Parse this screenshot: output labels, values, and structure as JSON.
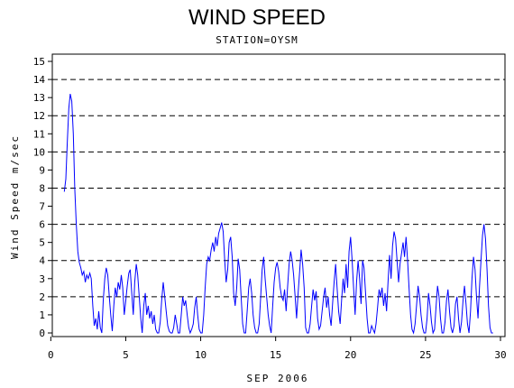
{
  "chart_data": {
    "type": "line",
    "title": "WIND SPEED",
    "subtitle": "STATION=OYSM",
    "xlabel": "SEP 2006",
    "ylabel": "Wind Speed m/sec",
    "xlim": [
      0.1,
      30.3
    ],
    "ylim": [
      -0.2,
      15.4
    ],
    "x_ticks": [
      0,
      5,
      10,
      15,
      20,
      25,
      30
    ],
    "y_ticks": [
      0,
      1,
      2,
      3,
      4,
      5,
      6,
      7,
      8,
      9,
      10,
      11,
      12,
      13,
      14,
      15
    ],
    "gridlines_y": [
      2,
      4,
      6,
      8,
      10,
      12,
      14
    ],
    "grid_style": "dashed horizontal",
    "line_color": "#0000ff",
    "series": [
      {
        "points": [
          [
            0.9,
            7.8
          ],
          [
            1.0,
            8.5
          ],
          [
            1.1,
            10.5
          ],
          [
            1.2,
            12.4
          ],
          [
            1.3,
            13.2
          ],
          [
            1.4,
            12.8
          ],
          [
            1.5,
            11.0
          ],
          [
            1.6,
            8.0
          ],
          [
            1.7,
            6.0
          ],
          [
            1.8,
            4.5
          ],
          [
            1.9,
            3.9
          ],
          [
            2.0,
            3.6
          ],
          [
            2.1,
            3.2
          ],
          [
            2.2,
            3.4
          ],
          [
            2.3,
            2.8
          ],
          [
            2.4,
            3.2
          ],
          [
            2.5,
            3.0
          ],
          [
            2.6,
            3.3
          ],
          [
            2.7,
            3.0
          ],
          [
            2.8,
            1.5
          ],
          [
            2.9,
            0.4
          ],
          [
            3.0,
            0.8
          ],
          [
            3.1,
            0.2
          ],
          [
            3.2,
            1.2
          ],
          [
            3.3,
            0.3
          ],
          [
            3.4,
            0.0
          ],
          [
            3.5,
            1.8
          ],
          [
            3.6,
            3.0
          ],
          [
            3.7,
            3.6
          ],
          [
            3.8,
            3.2
          ],
          [
            3.9,
            2.0
          ],
          [
            4.0,
            1.0
          ],
          [
            4.1,
            0.1
          ],
          [
            4.2,
            1.5
          ],
          [
            4.3,
            2.5
          ],
          [
            4.4,
            2.0
          ],
          [
            4.5,
            2.8
          ],
          [
            4.6,
            2.4
          ],
          [
            4.7,
            3.2
          ],
          [
            4.8,
            2.5
          ],
          [
            4.9,
            1.0
          ],
          [
            5.0,
            1.8
          ],
          [
            5.1,
            2.6
          ],
          [
            5.2,
            3.3
          ],
          [
            5.3,
            3.5
          ],
          [
            5.4,
            2.2
          ],
          [
            5.5,
            1.0
          ],
          [
            5.6,
            2.8
          ],
          [
            5.7,
            3.8
          ],
          [
            5.8,
            3.2
          ],
          [
            5.9,
            2.0
          ],
          [
            6.0,
            0.8
          ],
          [
            6.1,
            0.0
          ],
          [
            6.2,
            1.5
          ],
          [
            6.3,
            2.2
          ],
          [
            6.4,
            1.0
          ],
          [
            6.5,
            1.5
          ],
          [
            6.6,
            0.8
          ],
          [
            6.7,
            1.2
          ],
          [
            6.8,
            0.5
          ],
          [
            6.9,
            1.0
          ],
          [
            7.0,
            0.2
          ],
          [
            7.1,
            0.0
          ],
          [
            7.2,
            0.0
          ],
          [
            7.3,
            0.6
          ],
          [
            7.4,
            1.8
          ],
          [
            7.5,
            2.8
          ],
          [
            7.6,
            2.0
          ],
          [
            7.7,
            1.2
          ],
          [
            7.8,
            0.4
          ],
          [
            7.9,
            0.1
          ],
          [
            8.0,
            0.0
          ],
          [
            8.1,
            0.0
          ],
          [
            8.2,
            0.3
          ],
          [
            8.3,
            1.0
          ],
          [
            8.4,
            0.5
          ],
          [
            8.5,
            0.0
          ],
          [
            8.6,
            0.0
          ],
          [
            8.7,
            1.0
          ],
          [
            8.8,
            2.0
          ],
          [
            8.9,
            1.5
          ],
          [
            9.0,
            1.8
          ],
          [
            9.1,
            1.0
          ],
          [
            9.2,
            0.3
          ],
          [
            9.3,
            0.0
          ],
          [
            9.4,
            0.2
          ],
          [
            9.5,
            0.5
          ],
          [
            9.6,
            1.4
          ],
          [
            9.7,
            2.0
          ],
          [
            9.8,
            1.0
          ],
          [
            9.9,
            0.2
          ],
          [
            10.0,
            0.0
          ],
          [
            10.1,
            0.0
          ],
          [
            10.2,
            1.0
          ],
          [
            10.3,
            2.5
          ],
          [
            10.4,
            3.8
          ],
          [
            10.5,
            4.2
          ],
          [
            10.6,
            4.0
          ],
          [
            10.7,
            4.6
          ],
          [
            10.8,
            5.0
          ],
          [
            10.9,
            4.5
          ],
          [
            11.0,
            5.3
          ],
          [
            11.1,
            4.8
          ],
          [
            11.2,
            5.5
          ],
          [
            11.3,
            5.8
          ],
          [
            11.4,
            6.1
          ],
          [
            11.5,
            5.6
          ],
          [
            11.6,
            4.0
          ],
          [
            11.7,
            2.8
          ],
          [
            11.8,
            3.5
          ],
          [
            11.9,
            5.0
          ],
          [
            12.0,
            5.3
          ],
          [
            12.1,
            4.2
          ],
          [
            12.2,
            2.2
          ],
          [
            12.3,
            1.5
          ],
          [
            12.4,
            2.5
          ],
          [
            12.5,
            4.1
          ],
          [
            12.6,
            3.5
          ],
          [
            12.7,
            2.0
          ],
          [
            12.8,
            0.5
          ],
          [
            12.9,
            0.0
          ],
          [
            13.0,
            0.0
          ],
          [
            13.1,
            1.2
          ],
          [
            13.2,
            2.5
          ],
          [
            13.3,
            3.0
          ],
          [
            13.4,
            2.2
          ],
          [
            13.5,
            1.0
          ],
          [
            13.6,
            0.3
          ],
          [
            13.7,
            0.0
          ],
          [
            13.8,
            0.0
          ],
          [
            13.9,
            0.5
          ],
          [
            14.0,
            2.0
          ],
          [
            14.1,
            3.5
          ],
          [
            14.2,
            4.2
          ],
          [
            14.3,
            3.0
          ],
          [
            14.4,
            2.0
          ],
          [
            14.5,
            1.0
          ],
          [
            14.6,
            0.4
          ],
          [
            14.7,
            0.0
          ],
          [
            14.8,
            1.5
          ],
          [
            14.9,
            2.8
          ],
          [
            15.0,
            3.6
          ],
          [
            15.1,
            3.9
          ],
          [
            15.2,
            3.4
          ],
          [
            15.3,
            2.5
          ],
          [
            15.4,
            2.0
          ],
          [
            15.5,
            1.8
          ],
          [
            15.6,
            2.4
          ],
          [
            15.7,
            1.2
          ],
          [
            15.8,
            2.6
          ],
          [
            15.9,
            3.8
          ],
          [
            16.0,
            4.5
          ],
          [
            16.1,
            4.0
          ],
          [
            16.2,
            3.2
          ],
          [
            16.3,
            2.0
          ],
          [
            16.4,
            0.8
          ],
          [
            16.5,
            2.2
          ],
          [
            16.6,
            3.4
          ],
          [
            16.7,
            4.6
          ],
          [
            16.8,
            3.8
          ],
          [
            16.9,
            2.5
          ],
          [
            17.0,
            0.3
          ],
          [
            17.1,
            0.0
          ],
          [
            17.2,
            0.0
          ],
          [
            17.3,
            0.5
          ],
          [
            17.4,
            1.5
          ],
          [
            17.5,
            2.4
          ],
          [
            17.6,
            1.8
          ],
          [
            17.7,
            2.3
          ],
          [
            17.8,
            0.8
          ],
          [
            17.9,
            0.2
          ],
          [
            18.0,
            0.4
          ],
          [
            18.1,
            1.2
          ],
          [
            18.2,
            2.0
          ],
          [
            18.3,
            2.5
          ],
          [
            18.4,
            1.4
          ],
          [
            18.5,
            2.0
          ],
          [
            18.6,
            1.0
          ],
          [
            18.7,
            0.4
          ],
          [
            18.8,
            1.6
          ],
          [
            18.9,
            2.8
          ],
          [
            19.0,
            3.8
          ],
          [
            19.1,
            2.5
          ],
          [
            19.2,
            1.2
          ],
          [
            19.3,
            0.5
          ],
          [
            19.4,
            1.8
          ],
          [
            19.5,
            3.0
          ],
          [
            19.6,
            2.2
          ],
          [
            19.7,
            3.8
          ],
          [
            19.8,
            2.5
          ],
          [
            19.9,
            4.5
          ],
          [
            20.0,
            5.3
          ],
          [
            20.1,
            4.0
          ],
          [
            20.2,
            2.5
          ],
          [
            20.3,
            1.0
          ],
          [
            20.4,
            2.8
          ],
          [
            20.5,
            4.0
          ],
          [
            20.6,
            3.0
          ],
          [
            20.7,
            1.6
          ],
          [
            20.8,
            4.0
          ],
          [
            20.9,
            3.6
          ],
          [
            21.0,
            2.2
          ],
          [
            21.1,
            0.8
          ],
          [
            21.2,
            0.0
          ],
          [
            21.3,
            0.0
          ],
          [
            21.4,
            0.4
          ],
          [
            21.5,
            0.2
          ],
          [
            21.6,
            0.0
          ],
          [
            21.7,
            0.5
          ],
          [
            21.8,
            1.4
          ],
          [
            21.9,
            2.4
          ],
          [
            22.0,
            2.0
          ],
          [
            22.1,
            2.5
          ],
          [
            22.2,
            1.5
          ],
          [
            22.3,
            2.2
          ],
          [
            22.4,
            1.2
          ],
          [
            22.5,
            2.8
          ],
          [
            22.6,
            4.3
          ],
          [
            22.7,
            3.0
          ],
          [
            22.8,
            4.8
          ],
          [
            22.9,
            5.6
          ],
          [
            23.0,
            5.2
          ],
          [
            23.1,
            4.0
          ],
          [
            23.2,
            2.8
          ],
          [
            23.3,
            3.8
          ],
          [
            23.4,
            4.4
          ],
          [
            23.5,
            5.0
          ],
          [
            23.6,
            4.2
          ],
          [
            23.7,
            5.3
          ],
          [
            23.8,
            4.0
          ],
          [
            23.9,
            2.5
          ],
          [
            24.0,
            1.0
          ],
          [
            24.1,
            0.2
          ],
          [
            24.2,
            0.0
          ],
          [
            24.3,
            0.5
          ],
          [
            24.4,
            1.5
          ],
          [
            24.5,
            2.6
          ],
          [
            24.6,
            2.0
          ],
          [
            24.7,
            1.0
          ],
          [
            24.8,
            0.3
          ],
          [
            24.9,
            0.0
          ],
          [
            25.0,
            0.0
          ],
          [
            25.1,
            0.8
          ],
          [
            25.2,
            2.2
          ],
          [
            25.3,
            1.5
          ],
          [
            25.4,
            0.6
          ],
          [
            25.5,
            0.0
          ],
          [
            25.6,
            0.2
          ],
          [
            25.7,
            1.4
          ],
          [
            25.8,
            2.6
          ],
          [
            25.9,
            2.0
          ],
          [
            26.0,
            0.8
          ],
          [
            26.1,
            0.0
          ],
          [
            26.2,
            0.0
          ],
          [
            26.3,
            0.6
          ],
          [
            26.4,
            1.8
          ],
          [
            26.5,
            2.4
          ],
          [
            26.6,
            1.2
          ],
          [
            26.7,
            0.3
          ],
          [
            26.8,
            0.0
          ],
          [
            26.9,
            0.4
          ],
          [
            27.0,
            1.6
          ],
          [
            27.1,
            2.0
          ],
          [
            27.2,
            0.8
          ],
          [
            27.3,
            0.0
          ],
          [
            27.4,
            0.6
          ],
          [
            27.5,
            1.8
          ],
          [
            27.6,
            2.6
          ],
          [
            27.7,
            1.6
          ],
          [
            27.8,
            0.5
          ],
          [
            27.9,
            0.0
          ],
          [
            28.0,
            1.2
          ],
          [
            28.1,
            3.0
          ],
          [
            28.2,
            4.2
          ],
          [
            28.3,
            3.5
          ],
          [
            28.4,
            2.0
          ],
          [
            28.5,
            0.8
          ],
          [
            28.6,
            2.5
          ],
          [
            28.7,
            4.0
          ],
          [
            28.8,
            5.4
          ],
          [
            28.9,
            6.0
          ],
          [
            29.0,
            5.2
          ],
          [
            29.1,
            3.5
          ],
          [
            29.2,
            1.5
          ],
          [
            29.3,
            0.3
          ],
          [
            29.4,
            0.0
          ],
          [
            29.5,
            0.0
          ]
        ]
      }
    ]
  }
}
